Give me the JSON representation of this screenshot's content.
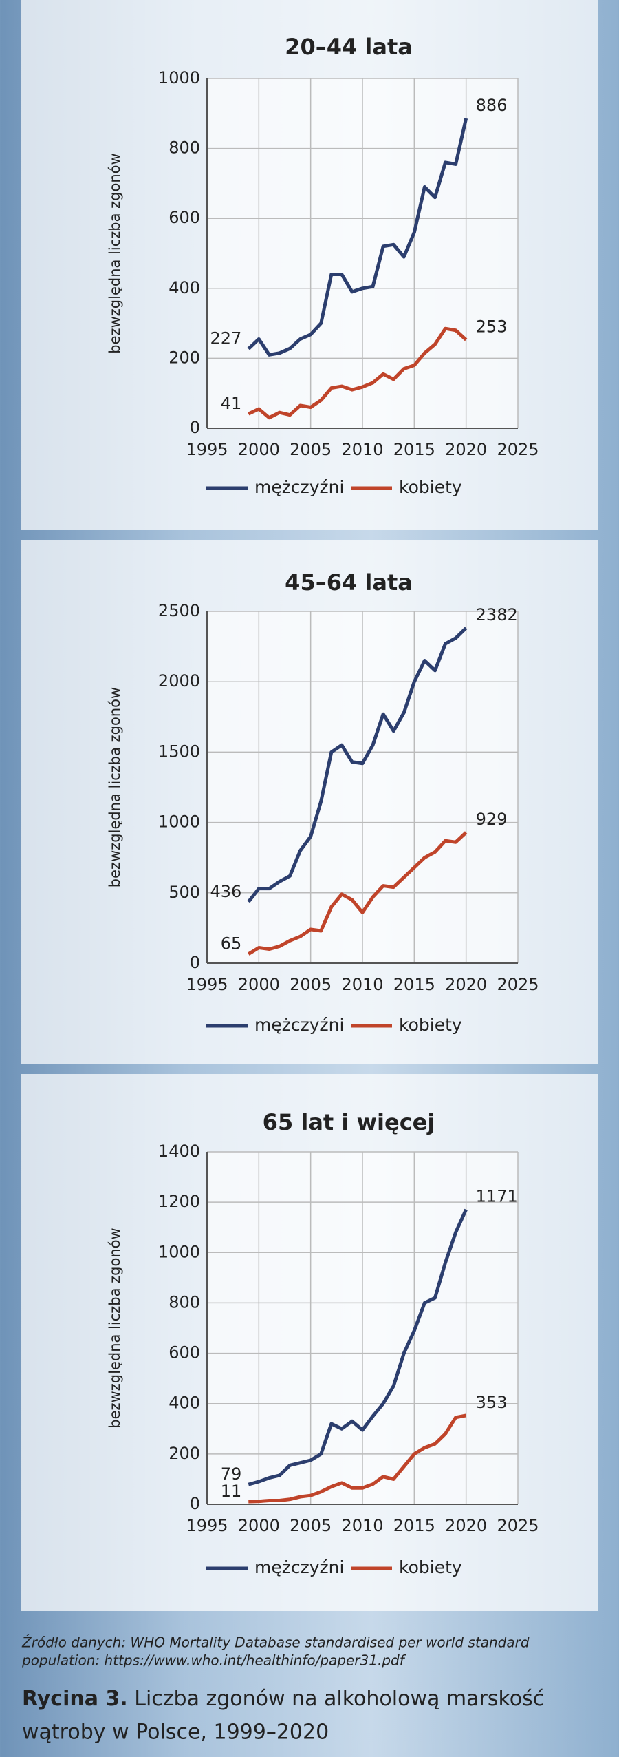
{
  "chart_data": [
    {
      "type": "line",
      "title": "20–44 lata",
      "ylabel": "bezwzględna liczba zgonów",
      "x": [
        1999,
        2000,
        2001,
        2002,
        2003,
        2004,
        2005,
        2006,
        2007,
        2008,
        2009,
        2010,
        2011,
        2012,
        2013,
        2014,
        2015,
        2016,
        2017,
        2018,
        2019,
        2020
      ],
      "xlim": [
        1995,
        2025
      ],
      "xticks": [
        1995,
        2000,
        2005,
        2010,
        2015,
        2020,
        2025
      ],
      "ylim": [
        0,
        1000
      ],
      "yticks": [
        0,
        200,
        400,
        600,
        800,
        1000
      ],
      "grid": true,
      "legend": "bottom",
      "series": [
        {
          "name": "mężczyźni",
          "color": "#2c3e6e",
          "values": [
            227,
            255,
            210,
            215,
            228,
            255,
            268,
            300,
            440,
            440,
            390,
            400,
            405,
            520,
            525,
            490,
            560,
            690,
            660,
            760,
            755,
            886
          ]
        },
        {
          "name": "kobiety",
          "color": "#c0442a",
          "values": [
            41,
            55,
            30,
            45,
            38,
            65,
            60,
            80,
            115,
            120,
            110,
            118,
            130,
            155,
            140,
            170,
            180,
            215,
            240,
            285,
            280,
            253
          ]
        }
      ]
    },
    {
      "type": "line",
      "title": "45–64 lata",
      "ylabel": "bezwzględna liczba zgonów",
      "x": [
        1999,
        2000,
        2001,
        2002,
        2003,
        2004,
        2005,
        2006,
        2007,
        2008,
        2009,
        2010,
        2011,
        2012,
        2013,
        2014,
        2015,
        2016,
        2017,
        2018,
        2019,
        2020
      ],
      "xlim": [
        1995,
        2025
      ],
      "xticks": [
        1995,
        2000,
        2005,
        2010,
        2015,
        2020,
        2025
      ],
      "ylim": [
        0,
        2500
      ],
      "yticks": [
        0,
        500,
        1000,
        1500,
        2000,
        2500
      ],
      "grid": true,
      "legend": "bottom",
      "series": [
        {
          "name": "mężczyźni",
          "color": "#2c3e6e",
          "values": [
            436,
            530,
            530,
            580,
            620,
            800,
            900,
            1150,
            1500,
            1550,
            1430,
            1420,
            1550,
            1770,
            1650,
            1780,
            2000,
            2150,
            2080,
            2270,
            2310,
            2382
          ]
        },
        {
          "name": "kobiety",
          "color": "#c0442a",
          "values": [
            65,
            110,
            100,
            120,
            160,
            190,
            240,
            230,
            400,
            490,
            450,
            360,
            470,
            550,
            540,
            610,
            680,
            750,
            790,
            870,
            860,
            929
          ]
        }
      ]
    },
    {
      "type": "line",
      "title": "65 lat i więcej",
      "ylabel": "bezwzględna liczba zgonów",
      "x": [
        1999,
        2000,
        2001,
        2002,
        2003,
        2004,
        2005,
        2006,
        2007,
        2008,
        2009,
        2010,
        2011,
        2012,
        2013,
        2014,
        2015,
        2016,
        2017,
        2018,
        2019,
        2020
      ],
      "xlim": [
        1995,
        2025
      ],
      "xticks": [
        1995,
        2000,
        2005,
        2010,
        2015,
        2020,
        2025
      ],
      "ylim": [
        0,
        1400
      ],
      "yticks": [
        0,
        200,
        400,
        600,
        800,
        1000,
        1200,
        1400
      ],
      "grid": true,
      "legend": "bottom",
      "series": [
        {
          "name": "mężczyźni",
          "color": "#2c3e6e",
          "values": [
            79,
            90,
            105,
            115,
            155,
            165,
            175,
            200,
            320,
            300,
            330,
            295,
            350,
            400,
            470,
            600,
            690,
            800,
            820,
            960,
            1080,
            1171
          ]
        },
        {
          "name": "kobiety",
          "color": "#c0442a",
          "values": [
            11,
            12,
            15,
            15,
            20,
            30,
            35,
            50,
            70,
            85,
            65,
            65,
            80,
            110,
            100,
            150,
            200,
            225,
            240,
            280,
            345,
            353
          ]
        }
      ]
    }
  ],
  "source": [
    "Źródło danych: WHO Mortality Database standardised per world standard",
    "population: https://www.who.int/healthinfo/paper31.pdf"
  ],
  "caption": {
    "label": "Rycina 3.",
    "text": [
      "Liczba zgonów na alkoholową marskość",
      "wątroby w Polsce, 1999–2020"
    ]
  }
}
